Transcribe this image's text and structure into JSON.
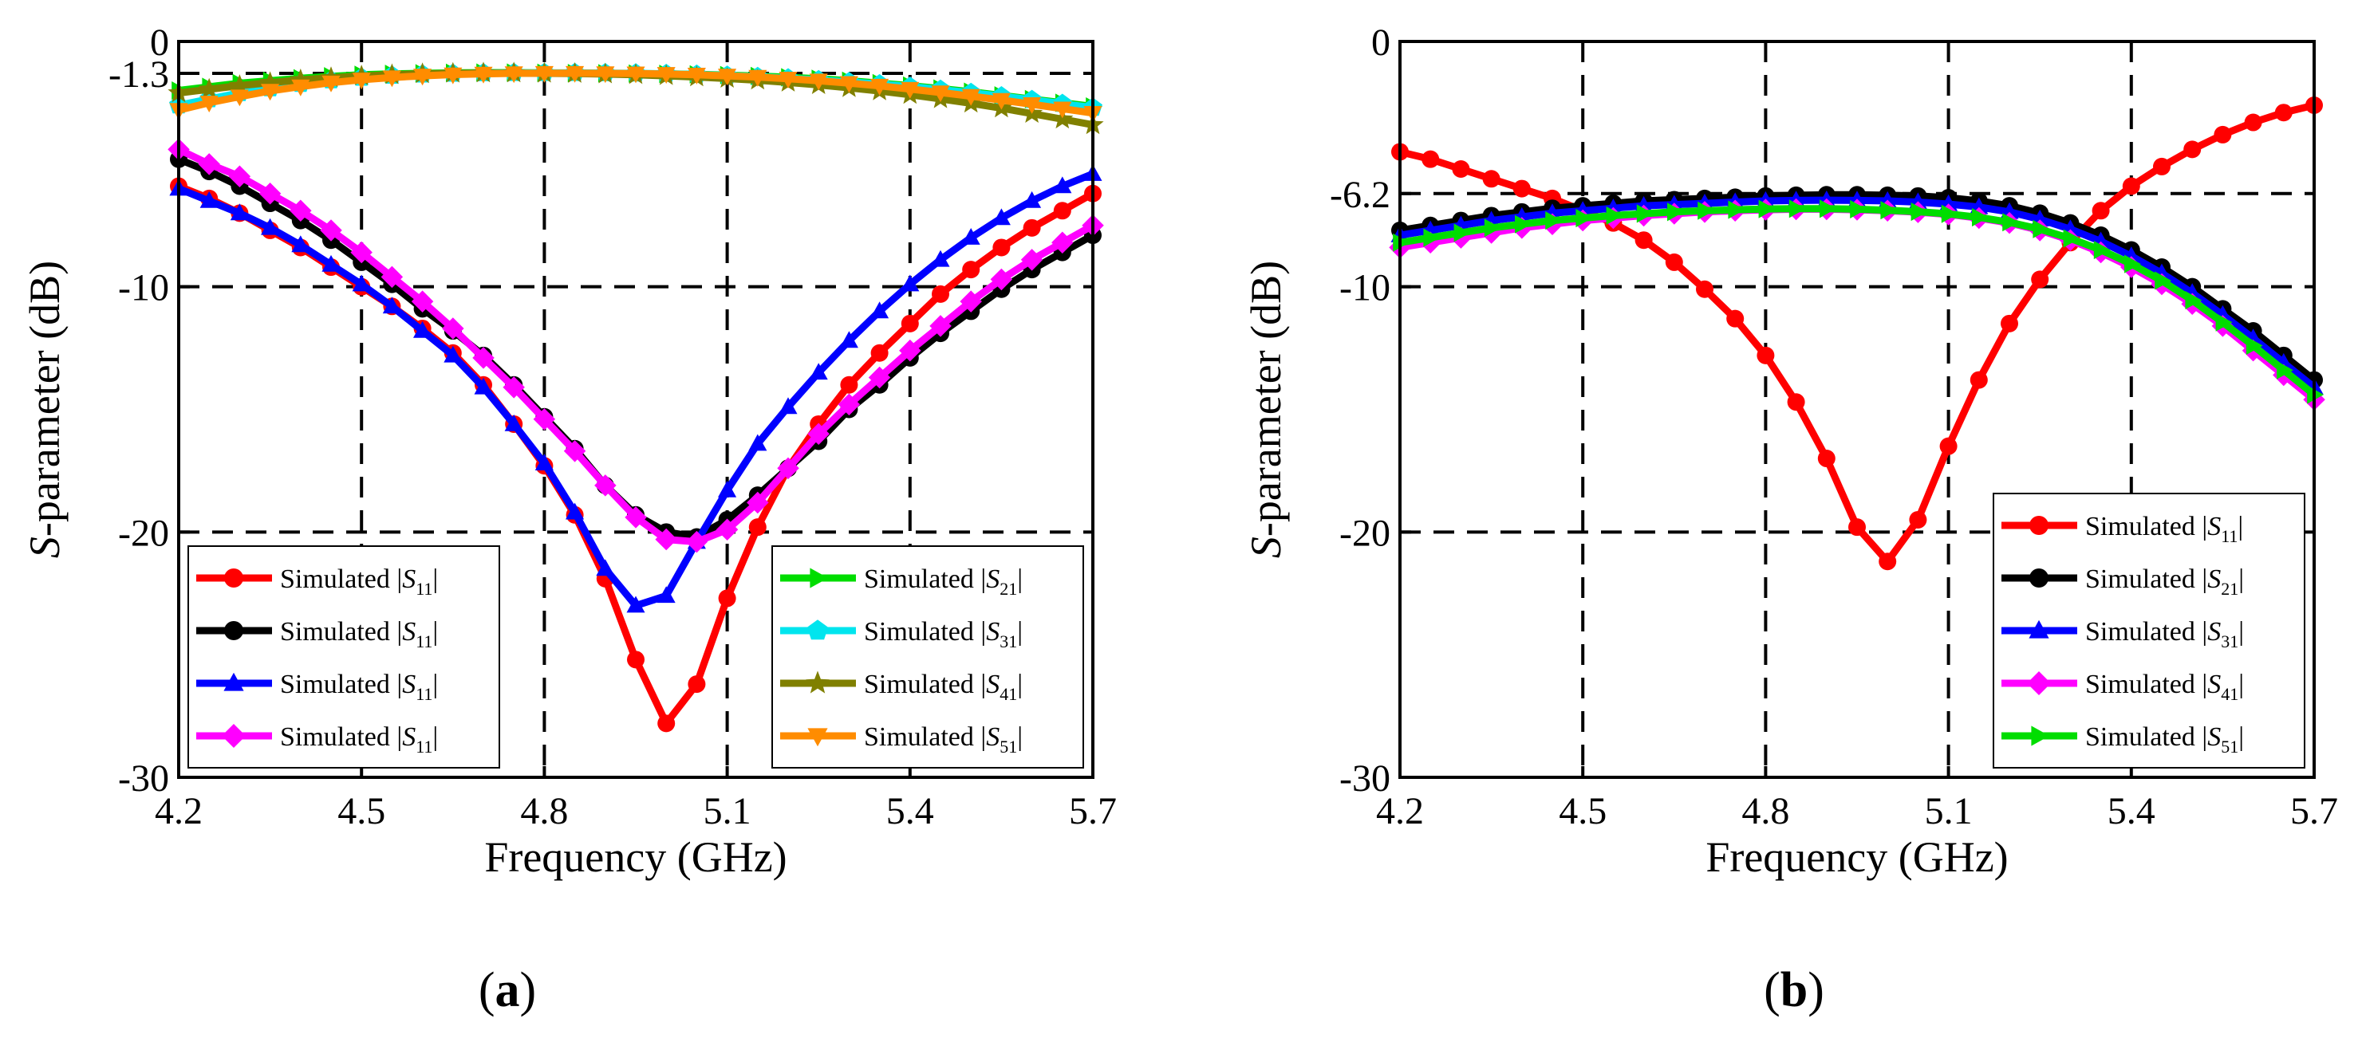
{
  "figure": {
    "panels": [
      {
        "label_open": "(",
        "label": "a",
        "label_close": ")"
      },
      {
        "label_open": "(",
        "label": "b",
        "label_close": ")"
      }
    ]
  },
  "chart_data": [
    {
      "type": "line",
      "panel": "a",
      "xlabel": "Frequency (GHz)",
      "ylabel_italic": "S",
      "ylabel_rest": "-parameter (dB)",
      "xlim": [
        4.2,
        5.7
      ],
      "ylim": [
        -30,
        0
      ],
      "xticks": [
        4.2,
        4.5,
        4.8,
        5.1,
        5.4,
        5.7
      ],
      "xtick_labels": [
        "4.2",
        "4.5",
        "4.8",
        "5.1",
        "5.4",
        "5.7"
      ],
      "yticks": [
        -30,
        -20,
        -10,
        -1.3,
        0
      ],
      "ytick_labels": [
        "-30",
        "-20",
        "-10",
        "-1.3",
        "0"
      ],
      "grid_x": [
        4.5,
        4.8,
        5.1,
        5.4
      ],
      "grid_y": [
        -20,
        -10,
        -1.3
      ],
      "x": [
        4.2,
        4.25,
        4.3,
        4.35,
        4.4,
        4.45,
        4.5,
        4.55,
        4.6,
        4.65,
        4.7,
        4.75,
        4.8,
        4.85,
        4.9,
        4.95,
        5.0,
        5.05,
        5.1,
        5.15,
        5.2,
        5.25,
        5.3,
        5.35,
        5.4,
        5.45,
        5.5,
        5.55,
        5.6,
        5.65,
        5.7
      ],
      "legend_columns": [
        {
          "position": "bottom-left",
          "entries": [
            0,
            1,
            2,
            3
          ]
        },
        {
          "position": "bottom-right",
          "entries": [
            4,
            5,
            6,
            7
          ]
        }
      ],
      "series": [
        {
          "name": "Simulated |S11|",
          "label_prefix": "Simulated |",
          "label_italic": "S",
          "label_sub": "11",
          "label_suffix": "|",
          "color": "#ff0000",
          "marker": "circle",
          "values": [
            -5.9,
            -6.4,
            -7.0,
            -7.7,
            -8.4,
            -9.2,
            -10.0,
            -10.8,
            -11.7,
            -12.7,
            -14.0,
            -15.6,
            -17.3,
            -19.3,
            -21.9,
            -25.2,
            -27.8,
            -26.2,
            -22.7,
            -19.8,
            -17.4,
            -15.6,
            -14.0,
            -12.7,
            -11.5,
            -10.3,
            -9.3,
            -8.4,
            -7.6,
            -6.9,
            -6.2
          ]
        },
        {
          "name": "Simulated |S11|",
          "label_prefix": "Simulated |",
          "label_italic": "S",
          "label_sub": "11",
          "label_suffix": "|",
          "color": "#000000",
          "marker": "circle",
          "values": [
            -4.8,
            -5.3,
            -5.9,
            -6.6,
            -7.3,
            -8.1,
            -9.0,
            -9.9,
            -10.9,
            -11.8,
            -12.8,
            -14.0,
            -15.3,
            -16.6,
            -18.1,
            -19.3,
            -20.0,
            -20.2,
            -19.5,
            -18.5,
            -17.4,
            -16.3,
            -15.0,
            -14.0,
            -12.9,
            -11.9,
            -11.0,
            -10.1,
            -9.3,
            -8.6,
            -7.9
          ]
        },
        {
          "name": "Simulated |S11|",
          "label_prefix": "Simulated |",
          "label_italic": "S",
          "label_sub": "11",
          "label_suffix": "|",
          "color": "#0000ff",
          "marker": "triangle",
          "values": [
            -6.0,
            -6.5,
            -7.0,
            -7.6,
            -8.3,
            -9.1,
            -9.9,
            -10.8,
            -11.8,
            -12.8,
            -14.1,
            -15.6,
            -17.2,
            -19.2,
            -21.5,
            -23.0,
            -22.6,
            -20.4,
            -18.3,
            -16.4,
            -14.9,
            -13.5,
            -12.2,
            -11.0,
            -9.9,
            -8.9,
            -8.0,
            -7.2,
            -6.5,
            -5.9,
            -5.4
          ]
        },
        {
          "name": "Simulated |S11|",
          "label_prefix": "Simulated |",
          "label_italic": "S",
          "label_sub": "11",
          "label_suffix": "|",
          "color": "#ff00ff",
          "marker": "diamond",
          "values": [
            -4.4,
            -5.0,
            -5.5,
            -6.2,
            -6.9,
            -7.7,
            -8.6,
            -9.6,
            -10.6,
            -11.7,
            -12.9,
            -14.1,
            -15.4,
            -16.7,
            -18.1,
            -19.4,
            -20.3,
            -20.4,
            -19.9,
            -18.8,
            -17.4,
            -16.0,
            -14.8,
            -13.7,
            -12.6,
            -11.6,
            -10.6,
            -9.7,
            -8.9,
            -8.2,
            -7.5
          ]
        },
        {
          "name": "Simulated |S21|",
          "label_prefix": "Simulated |",
          "label_italic": "S",
          "label_sub": "21",
          "label_suffix": "|",
          "color": "#00dd00",
          "marker": "triangle-right",
          "values": [
            -2.0,
            -1.85,
            -1.7,
            -1.6,
            -1.5,
            -1.42,
            -1.36,
            -1.32,
            -1.3,
            -1.28,
            -1.27,
            -1.27,
            -1.28,
            -1.29,
            -1.3,
            -1.31,
            -1.32,
            -1.34,
            -1.37,
            -1.41,
            -1.46,
            -1.52,
            -1.6,
            -1.7,
            -1.8,
            -1.92,
            -2.05,
            -2.2,
            -2.35,
            -2.5,
            -2.65
          ]
        },
        {
          "name": "Simulated |S31|",
          "label_prefix": "Simulated |",
          "label_italic": "S",
          "label_sub": "31",
          "label_suffix": "|",
          "color": "#00e5ee",
          "marker": "pentagon",
          "values": [
            -2.6,
            -2.35,
            -2.1,
            -1.9,
            -1.72,
            -1.58,
            -1.47,
            -1.39,
            -1.34,
            -1.31,
            -1.29,
            -1.28,
            -1.28,
            -1.28,
            -1.29,
            -1.3,
            -1.32,
            -1.35,
            -1.39,
            -1.44,
            -1.5,
            -1.57,
            -1.65,
            -1.74,
            -1.84,
            -1.96,
            -2.09,
            -2.23,
            -2.38,
            -2.54,
            -2.7
          ]
        },
        {
          "name": "Simulated |S41|",
          "label_prefix": "Simulated |",
          "label_italic": "S",
          "label_sub": "41",
          "label_suffix": "|",
          "color": "#808000",
          "marker": "star",
          "values": [
            -2.1,
            -1.95,
            -1.8,
            -1.68,
            -1.57,
            -1.48,
            -1.41,
            -1.36,
            -1.32,
            -1.3,
            -1.29,
            -1.29,
            -1.3,
            -1.31,
            -1.33,
            -1.36,
            -1.4,
            -1.45,
            -1.51,
            -1.58,
            -1.67,
            -1.77,
            -1.89,
            -2.02,
            -2.17,
            -2.34,
            -2.52,
            -2.72,
            -2.94,
            -3.17,
            -3.4
          ]
        },
        {
          "name": "Simulated |S51|",
          "label_prefix": "Simulated |",
          "label_italic": "S",
          "label_sub": "51",
          "label_suffix": "|",
          "color": "#ff8c00",
          "marker": "triangle-down",
          "values": [
            -2.8,
            -2.5,
            -2.25,
            -2.02,
            -1.84,
            -1.68,
            -1.56,
            -1.47,
            -1.4,
            -1.35,
            -1.32,
            -1.3,
            -1.29,
            -1.29,
            -1.3,
            -1.31,
            -1.33,
            -1.36,
            -1.4,
            -1.45,
            -1.52,
            -1.6,
            -1.7,
            -1.81,
            -1.94,
            -2.08,
            -2.23,
            -2.39,
            -2.56,
            -2.74,
            -2.92
          ]
        }
      ]
    },
    {
      "type": "line",
      "panel": "b",
      "xlabel": "Frequency (GHz)",
      "ylabel_italic": "S",
      "ylabel_rest": "-parameter (dB)",
      "xlim": [
        4.2,
        5.7
      ],
      "ylim": [
        -30,
        0
      ],
      "xticks": [
        4.2,
        4.5,
        4.8,
        5.1,
        5.4,
        5.7
      ],
      "xtick_labels": [
        "4.2",
        "4.5",
        "4.8",
        "5.1",
        "5.4",
        "5.7"
      ],
      "yticks": [
        -30,
        -20,
        -10,
        -6.2,
        0
      ],
      "ytick_labels": [
        "-30",
        "-20",
        "-10",
        "-6.2",
        "0"
      ],
      "grid_x": [
        4.5,
        4.8,
        5.1,
        5.4
      ],
      "grid_y": [
        -20,
        -10,
        -6.2
      ],
      "x": [
        4.2,
        4.25,
        4.3,
        4.35,
        4.4,
        4.45,
        4.5,
        4.55,
        4.6,
        4.65,
        4.7,
        4.75,
        4.8,
        4.85,
        4.9,
        4.95,
        5.0,
        5.05,
        5.1,
        5.15,
        5.2,
        5.25,
        5.3,
        5.35,
        5.4,
        5.45,
        5.5,
        5.55,
        5.6,
        5.65,
        5.7
      ],
      "legend_columns": [
        {
          "position": "bottom-right",
          "entries": [
            0,
            1,
            2,
            3,
            4
          ]
        }
      ],
      "series": [
        {
          "name": "Simulated |S11|",
          "label_prefix": "Simulated |",
          "label_italic": "S",
          "label_sub": "11",
          "label_suffix": "|",
          "color": "#ff0000",
          "marker": "circle",
          "values": [
            -4.5,
            -4.8,
            -5.2,
            -5.6,
            -6.0,
            -6.4,
            -6.9,
            -7.4,
            -8.1,
            -9.0,
            -10.1,
            -11.3,
            -12.8,
            -14.7,
            -17.0,
            -19.8,
            -21.2,
            -19.5,
            -16.5,
            -13.8,
            -11.5,
            -9.7,
            -8.2,
            -6.9,
            -5.9,
            -5.1,
            -4.4,
            -3.8,
            -3.3,
            -2.9,
            -2.6
          ]
        },
        {
          "name": "Simulated |S21|",
          "label_prefix": "Simulated |",
          "label_italic": "S",
          "label_sub": "21",
          "label_suffix": "|",
          "color": "#000000",
          "marker": "circle",
          "values": [
            -7.7,
            -7.5,
            -7.3,
            -7.1,
            -6.95,
            -6.8,
            -6.7,
            -6.6,
            -6.5,
            -6.45,
            -6.4,
            -6.35,
            -6.3,
            -6.27,
            -6.25,
            -6.25,
            -6.27,
            -6.3,
            -6.37,
            -6.5,
            -6.7,
            -7.0,
            -7.4,
            -7.9,
            -8.5,
            -9.2,
            -10.0,
            -10.9,
            -11.8,
            -12.8,
            -13.8
          ]
        },
        {
          "name": "Simulated |S31|",
          "label_prefix": "Simulated |",
          "label_italic": "S",
          "label_sub": "31",
          "label_suffix": "|",
          "color": "#0000ff",
          "marker": "triangle",
          "values": [
            -7.9,
            -7.7,
            -7.5,
            -7.3,
            -7.15,
            -7.0,
            -6.9,
            -6.8,
            -6.7,
            -6.65,
            -6.6,
            -6.55,
            -6.5,
            -6.48,
            -6.47,
            -6.48,
            -6.5,
            -6.55,
            -6.63,
            -6.75,
            -6.95,
            -7.25,
            -7.65,
            -8.15,
            -8.75,
            -9.45,
            -10.25,
            -11.15,
            -12.1,
            -13.1,
            -14.1
          ]
        },
        {
          "name": "Simulated |S41|",
          "label_prefix": "Simulated |",
          "label_italic": "S",
          "label_sub": "41",
          "label_suffix": "|",
          "color": "#ff00ff",
          "marker": "diamond",
          "values": [
            -8.4,
            -8.2,
            -8.0,
            -7.8,
            -7.6,
            -7.45,
            -7.3,
            -7.2,
            -7.1,
            -7.02,
            -6.95,
            -6.9,
            -6.86,
            -6.84,
            -6.84,
            -6.86,
            -6.9,
            -6.96,
            -7.05,
            -7.2,
            -7.4,
            -7.7,
            -8.1,
            -8.6,
            -9.2,
            -9.9,
            -10.7,
            -11.6,
            -12.6,
            -13.6,
            -14.6
          ]
        },
        {
          "name": "Simulated |S51|",
          "label_prefix": "Simulated |",
          "label_italic": "S",
          "label_sub": "51",
          "label_suffix": "|",
          "color": "#00dd00",
          "marker": "triangle-right",
          "values": [
            -8.2,
            -8.0,
            -7.8,
            -7.6,
            -7.45,
            -7.3,
            -7.2,
            -7.1,
            -7.02,
            -6.95,
            -6.9,
            -6.86,
            -6.83,
            -6.82,
            -6.82,
            -6.84,
            -6.88,
            -6.94,
            -7.03,
            -7.17,
            -7.37,
            -7.65,
            -8.03,
            -8.5,
            -9.07,
            -9.75,
            -10.55,
            -11.45,
            -12.4,
            -13.4,
            -14.4
          ]
        }
      ]
    }
  ]
}
